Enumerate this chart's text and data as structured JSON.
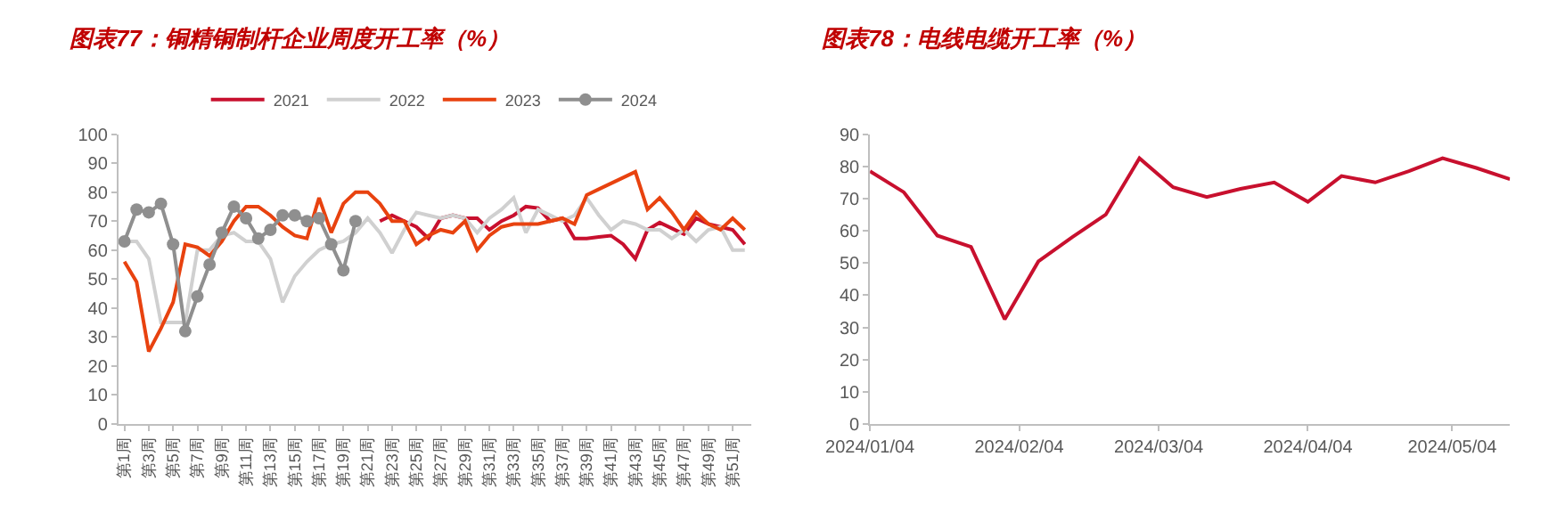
{
  "chart_data": [
    {
      "type": "line",
      "title": "图表77：铜精铜制杆企业周度开工率（%）",
      "categories": [
        "第1周",
        null,
        "第3周",
        null,
        "第5周",
        null,
        "第7周",
        null,
        "第9周",
        null,
        "第11周",
        null,
        "第13周",
        null,
        "第15周",
        null,
        "第17周",
        null,
        "第19周",
        null,
        "第21周",
        null,
        "第23周",
        null,
        "第25周",
        null,
        "第27周",
        null,
        "第29周",
        null,
        "第31周",
        null,
        "第33周",
        null,
        "第35周",
        null,
        "第37周",
        null,
        "第39周",
        null,
        "第41周",
        null,
        "第43周",
        null,
        "第45周",
        null,
        "第47周",
        null,
        "第49周",
        null,
        "第51周",
        null
      ],
      "series": [
        {
          "name": "2021",
          "color": "#c8102e",
          "values": [
            null,
            null,
            null,
            null,
            null,
            null,
            null,
            null,
            null,
            null,
            null,
            null,
            null,
            null,
            null,
            null,
            null,
            null,
            null,
            null,
            null,
            70,
            72,
            70,
            68,
            64,
            71,
            72,
            71,
            71,
            67,
            70,
            72,
            75,
            74.5,
            70,
            71,
            64,
            64,
            64.5,
            65,
            62,
            57,
            67,
            69.5,
            67.5,
            65.5,
            71,
            69,
            68,
            67,
            62
          ]
        },
        {
          "name": "2022",
          "color": "#d0d0d0",
          "values": [
            63,
            63,
            57,
            35,
            35,
            35,
            60,
            60,
            65,
            66,
            63,
            63,
            57,
            42,
            51,
            56,
            60,
            62,
            63,
            66,
            71,
            66,
            59,
            67,
            73,
            72,
            71,
            72,
            71,
            66,
            71,
            74,
            78,
            66,
            74,
            72,
            70,
            72,
            78,
            72,
            67,
            70,
            69,
            67,
            67,
            64,
            67,
            63,
            67,
            68,
            60,
            60
          ]
        },
        {
          "name": "2023",
          "color": "#e8420f",
          "values": [
            56,
            49,
            25,
            33,
            42,
            62,
            61,
            58,
            63,
            70,
            75,
            75,
            72,
            68,
            65,
            64,
            78,
            66,
            76,
            80,
            80,
            76,
            70,
            70,
            62,
            65,
            67,
            66,
            70,
            60,
            65,
            68,
            69,
            69,
            69,
            70,
            71,
            69,
            79,
            81,
            83,
            85,
            87,
            74,
            78,
            73,
            67,
            73,
            69,
            67,
            71,
            67
          ]
        },
        {
          "name": "2024",
          "color": "#8f8f8f",
          "marker": "circle",
          "values": [
            63,
            74,
            73,
            76,
            62,
            32,
            44,
            55,
            66,
            75,
            71,
            64,
            67,
            72,
            72,
            70,
            71,
            62,
            53,
            70,
            null,
            null,
            null,
            null,
            null,
            null,
            null,
            null,
            null,
            null,
            null,
            null,
            null,
            null,
            null,
            null,
            null,
            null,
            null,
            null,
            null,
            null,
            null,
            null,
            null,
            null,
            null,
            null,
            null,
            null,
            null,
            null
          ]
        }
      ],
      "ylim": [
        0,
        100
      ],
      "yticks": [
        0,
        10,
        20,
        30,
        40,
        50,
        60,
        70,
        80,
        90,
        100
      ],
      "legend": "top"
    },
    {
      "type": "line",
      "title": "图表78：电线电缆开工率（%）",
      "x": [
        "2024-01-04",
        "2024-01-11",
        "2024-01-18",
        "2024-01-25",
        "2024-02-01",
        "2024-02-08",
        "2024-02-15",
        "2024-02-22",
        "2024-02-29",
        "2024-03-07",
        "2024-03-14",
        "2024-03-21",
        "2024-03-28",
        "2024-04-04",
        "2024-04-11",
        "2024-04-18",
        "2024-04-25",
        "2024-05-02",
        "2024-05-09",
        "2024-05-16"
      ],
      "series": [
        {
          "color": "#c8102e",
          "values": [
            78.5,
            72,
            58.5,
            55,
            32.5,
            50.5,
            58,
            65,
            82.5,
            73.5,
            70.5,
            73,
            75,
            69,
            77,
            75,
            78.5,
            82.5,
            79.5,
            76
          ]
        }
      ],
      "xlim": [
        "2024-01-04",
        "2024-05-16"
      ],
      "xticks": [
        {
          "value": "2024-01-04",
          "label": "2024/01/04"
        },
        {
          "value": "2024-02-04",
          "label": "2024/02/04"
        },
        {
          "value": "2024-03-04",
          "label": "2024/03/04"
        },
        {
          "value": "2024-04-04",
          "label": "2024/04/04"
        },
        {
          "value": "2024-05-04",
          "label": "2024/05/04"
        }
      ],
      "ylim": [
        0,
        90
      ],
      "yticks": [
        0,
        10,
        20,
        30,
        40,
        50,
        60,
        70,
        80,
        90
      ],
      "legend": false
    }
  ]
}
